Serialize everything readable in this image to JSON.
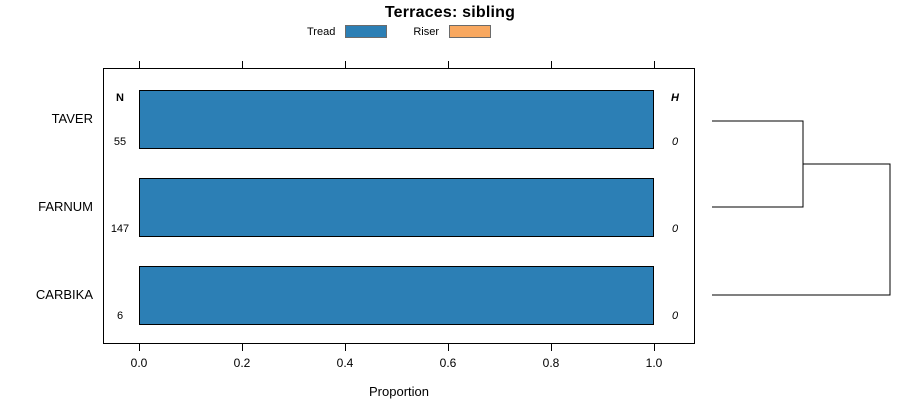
{
  "title": "Terraces: sibling",
  "legend": {
    "items": [
      {
        "label": "Tread",
        "color": "#2c7fb5"
      },
      {
        "label": "Riser",
        "color": "#f8a860"
      }
    ]
  },
  "columns": {
    "n_header": "N",
    "h_header": "H"
  },
  "rows": [
    {
      "label": "TAVER",
      "n": "55",
      "h": "0",
      "tread_value": 1.0
    },
    {
      "label": "FARNUM",
      "n": "147",
      "h": "0",
      "tread_value": 1.0
    },
    {
      "label": "CARBIKA",
      "n": "6",
      "h": "0",
      "tread_value": 1.0
    }
  ],
  "x_axis": {
    "label": "Proportion",
    "ticks": [
      "0.0",
      "0.2",
      "0.4",
      "0.6",
      "0.8",
      "1.0"
    ]
  },
  "chart_data": {
    "type": "bar",
    "subtype": "horizontal-stacked-proportion",
    "title": "Terraces: sibling",
    "categories": [
      "TAVER",
      "FARNUM",
      "CARBIKA"
    ],
    "series": [
      {
        "name": "Tread",
        "color": "#2c7fb5",
        "values": [
          1.0,
          1.0,
          1.0
        ]
      },
      {
        "name": "Riser",
        "color": "#f8a860",
        "values": [
          0.0,
          0.0,
          0.0
        ]
      }
    ],
    "n_column": {
      "header": "N",
      "values": [
        55,
        147,
        6
      ]
    },
    "h_column": {
      "header": "H",
      "values": [
        0,
        0,
        0
      ]
    },
    "xlabel": "Proportion",
    "xlim": [
      0.0,
      1.0
    ],
    "x_ticks": [
      0.0,
      0.2,
      0.4,
      0.6,
      0.8,
      1.0
    ],
    "grid": false,
    "legend_position": "top",
    "dendrogram": {
      "side": "right",
      "merges": [
        [
          "TAVER",
          "FARNUM"
        ],
        [
          [
            "TAVER",
            "FARNUM"
          ],
          "CARBIKA"
        ]
      ],
      "heights": [
        0,
        0
      ]
    }
  }
}
